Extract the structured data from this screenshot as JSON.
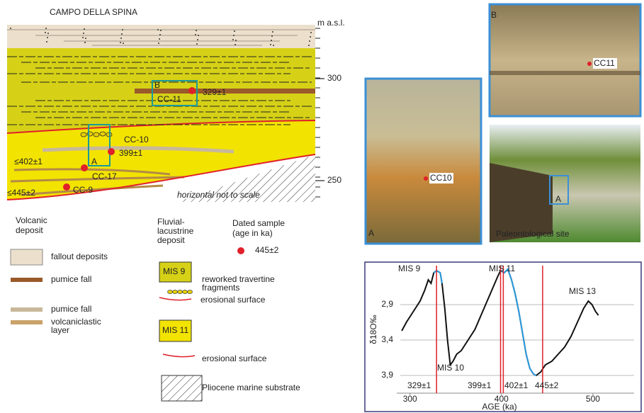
{
  "section": {
    "title": "CAMPO DELLA SPINA",
    "unit": "m a.s.l.",
    "elevation_ticks": [
      300,
      250
    ],
    "note": "horizontal not to scale",
    "samples": [
      {
        "id": "CC-11",
        "age": "329±1",
        "box": "B"
      },
      {
        "id": "CC-10",
        "age": "399±1",
        "box": "A"
      },
      {
        "id": "CC-17",
        "age": "≤402±1"
      },
      {
        "id": "CC-9",
        "age": "≤445±2"
      }
    ]
  },
  "legend": {
    "volcanic": {
      "title": [
        "Volcanic",
        "deposit"
      ],
      "items": [
        [
          "fallout deposits"
        ],
        [
          "pumice fall"
        ],
        [
          "pumice fall"
        ],
        [
          "volcaniclastic",
          "layer"
        ]
      ]
    },
    "fluvial": {
      "title": [
        "Fluvial-",
        "lacustrine",
        "deposit"
      ],
      "mis9": "MIS 9",
      "travertine": [
        "reworked travertine",
        "fragments"
      ],
      "erosional_1": "erosional surface",
      "mis11": "MIS 11",
      "erosional_2": "erosional surface"
    },
    "dated": {
      "title": [
        "Dated sample",
        "(age in ka)"
      ],
      "example": "445±2"
    },
    "substrate": "Pliocene marine substrate"
  },
  "photos": {
    "a": {
      "label": "A",
      "sample": "CC10"
    },
    "b": {
      "label": "B",
      "sample": "CC11"
    },
    "site": {
      "caption": "Paleontological site",
      "box": "A"
    }
  },
  "chart_data": {
    "type": "line",
    "xlabel": "AGE (ka)",
    "ylabel": "δ18O‰",
    "xlim": [
      270,
      545
    ],
    "xticks": [
      300,
      400,
      500
    ],
    "ylim": [
      4.15,
      2.35
    ],
    "yticks": [
      {
        "value": 2.9,
        "label": "2,9"
      },
      {
        "value": 3.4,
        "label": "3,4"
      },
      {
        "value": 3.9,
        "label": "3,9"
      }
    ],
    "grid": true,
    "series": [
      {
        "color": "#111111",
        "x": [
          291,
          296,
          301,
          306,
          311,
          316,
          320,
          323,
          326,
          329,
          333,
          335,
          338,
          341,
          344,
          347,
          351,
          356,
          361,
          366,
          371,
          376,
          381,
          386,
          391,
          396,
          399,
          403,
          407,
          411,
          415,
          419,
          423,
          427,
          431,
          435,
          438,
          443,
          448,
          455,
          462,
          469,
          476,
          483,
          490,
          495,
          499,
          503,
          506
        ],
        "values": [
          3.27,
          3.15,
          3.05,
          2.95,
          2.85,
          2.7,
          2.55,
          2.6,
          2.45,
          2.42,
          2.45,
          2.6,
          2.95,
          3.4,
          3.75,
          3.7,
          3.6,
          3.55,
          3.45,
          3.35,
          3.25,
          3.1,
          2.95,
          2.8,
          2.65,
          2.5,
          2.42,
          2.45,
          2.4,
          2.55,
          2.75,
          3.0,
          3.3,
          3.6,
          3.8,
          3.88,
          3.9,
          3.85,
          3.75,
          3.7,
          3.6,
          3.5,
          3.35,
          3.15,
          2.95,
          2.85,
          2.9,
          3.0,
          3.05
        ]
      },
      {
        "color": "#2a9de0",
        "x": [
          326,
          329,
          333,
          335,
          338,
          399,
          403,
          407,
          411,
          415,
          419,
          423,
          427,
          431,
          435,
          438
        ],
        "values": [
          2.45,
          2.42,
          2.45,
          2.6,
          null,
          2.42,
          2.45,
          2.4,
          2.55,
          2.75,
          3.0,
          3.3,
          3.6,
          3.8,
          3.88,
          3.9
        ]
      }
    ],
    "age_lines": {
      "color": "#e0202a",
      "values": [
        329,
        399,
        402,
        445
      ],
      "value_labels": [
        "329±1",
        "399±1",
        "402±1",
        "445±2"
      ]
    },
    "annotations": [
      "MIS 9",
      "MIS 11",
      "MIS 13",
      "MIS 10"
    ]
  }
}
